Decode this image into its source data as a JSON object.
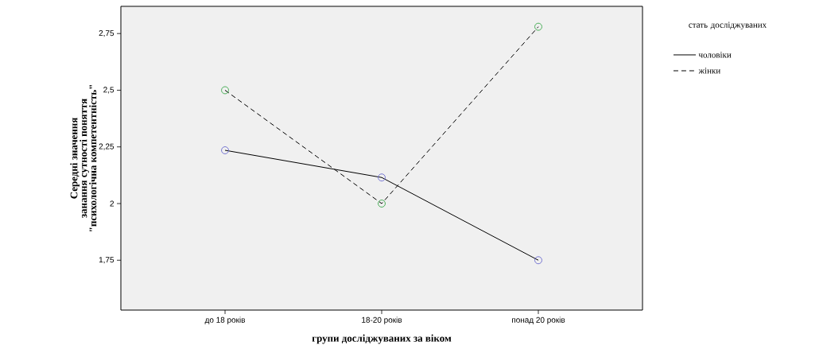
{
  "chart_data": {
    "type": "line",
    "xlabel": "групи досліджуваних за віком",
    "ylabel": "Середні значення занання сутності поняття \"психологічна компетентність\"",
    "legend_title": "стать досліджуваних",
    "categories": [
      "до 18 років",
      "18-20 років",
      "понад 20 років"
    ],
    "series": [
      {
        "name": "чоловіки",
        "color": "#000000",
        "line_style": "solid",
        "colors": [
          "#6a6acf",
          "#6a6acf",
          "#6a6acf"
        ],
        "values": [
          2.235,
          2.115,
          1.75
        ]
      },
      {
        "name": "жінки",
        "color": "#000000",
        "line_style": "dashed",
        "colors": [
          "#3aa84a",
          "#3aa84a",
          "#3aa84a"
        ],
        "values": [
          2.5,
          2.0,
          2.78
        ]
      }
    ],
    "ylim": [
      1.53,
      2.87
    ],
    "yticks": [
      {
        "value": 1.75,
        "label": "1,75"
      },
      2,
      {
        "value": 2.25,
        "label": "2,25"
      },
      {
        "value": 2.5,
        "label": "2,5"
      },
      {
        "value": 2.75,
        "label": "2,75"
      }
    ],
    "marker": "circle",
    "grid": false,
    "legend": "right"
  }
}
